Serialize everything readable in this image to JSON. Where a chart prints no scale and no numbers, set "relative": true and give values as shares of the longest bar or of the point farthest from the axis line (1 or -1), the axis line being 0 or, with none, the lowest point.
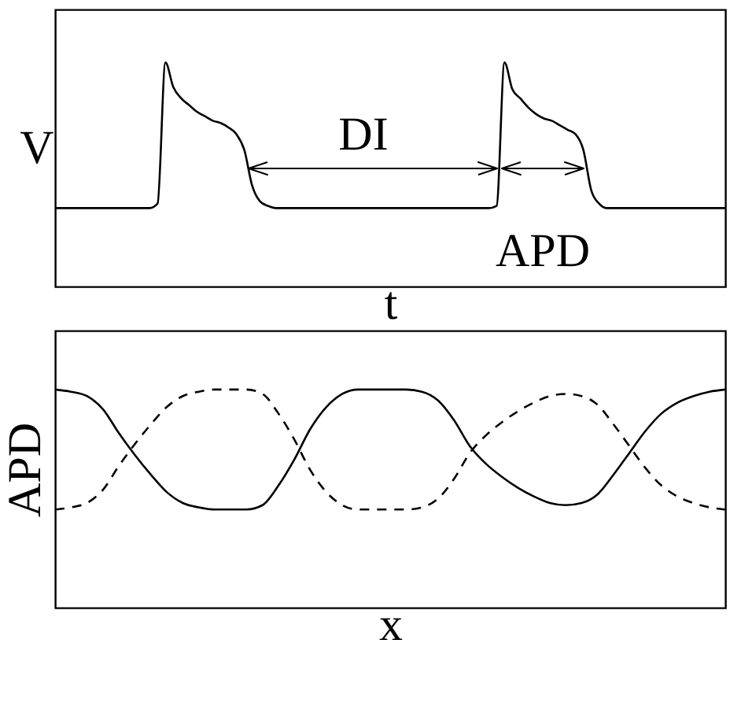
{
  "chart_data": [
    {
      "type": "line",
      "relative": true,
      "xlabel": "t",
      "ylabel": "V",
      "tick_labels": false,
      "annotations": [
        "DI",
        "APD"
      ],
      "categories": [
        null,
        null,
        null,
        null,
        null,
        null,
        null,
        null,
        null,
        null,
        null,
        null,
        null,
        null,
        null,
        null,
        null,
        null,
        null,
        null,
        null,
        null,
        null,
        null,
        null,
        null,
        null,
        null,
        null,
        null,
        null,
        null,
        null,
        null,
        null,
        null,
        null,
        null,
        null,
        null,
        null,
        null,
        null,
        null,
        null,
        null,
        null,
        null,
        null,
        null,
        null,
        null,
        null,
        null,
        null,
        null,
        null,
        null,
        null,
        null,
        null,
        null,
        null,
        null,
        null,
        null,
        null,
        null,
        null,
        null,
        null,
        null,
        null,
        null,
        null,
        null,
        null,
        null,
        null,
        null,
        null,
        null,
        null,
        null,
        null,
        null
      ],
      "series": [
        {
          "color": "#000000",
          "line_style": "solid",
          "values": [
            0.35,
            0.35,
            0.35,
            0.35,
            0.35,
            0.35,
            0.35,
            0.35,
            0.35,
            0.35,
            0.35,
            0.35,
            0.35,
            0.37,
            1.0,
            0.89,
            0.84,
            0.81,
            0.78,
            0.76,
            0.74,
            0.73,
            0.71,
            0.68,
            0.61,
            0.45,
            0.38,
            0.36,
            0.35,
            0.35,
            0.35,
            0.35,
            0.35,
            0.35,
            0.35,
            0.35,
            0.35,
            0.35,
            0.35,
            0.35,
            0.35,
            0.35,
            0.35,
            0.35,
            0.35,
            0.35,
            0.35,
            0.35,
            0.35,
            0.35,
            0.35,
            0.35,
            0.35,
            0.35,
            0.35,
            0.35,
            0.36,
            1.0,
            0.88,
            0.84,
            0.8,
            0.77,
            0.75,
            0.74,
            0.72,
            0.7,
            0.68,
            0.61,
            0.43,
            0.37,
            0.35,
            0.35,
            0.35,
            0.35,
            0.35,
            0.35,
            0.35,
            0.35,
            0.35,
            0.35,
            0.35,
            0.35,
            0.35,
            0.35,
            0.35,
            0.35
          ]
        }
      ]
    },
    {
      "type": "line",
      "relative": true,
      "xlabel": "x",
      "ylabel": "APD",
      "tick_labels": false,
      "categories": [
        null,
        null,
        null,
        null,
        null,
        null,
        null,
        null,
        null,
        null,
        null,
        null,
        null,
        null,
        null,
        null,
        null,
        null,
        null,
        null,
        null,
        null,
        null,
        null,
        null,
        null,
        null,
        null,
        null,
        null,
        null,
        null,
        null,
        null,
        null,
        null,
        null,
        null,
        null,
        null,
        null,
        null,
        null
      ],
      "series": [
        {
          "color": "#000000",
          "line_style": "solid",
          "values": [
            1.0,
            0.99,
            0.97,
            0.91,
            0.8,
            0.7,
            0.61,
            0.53,
            0.48,
            0.46,
            0.45,
            0.45,
            0.45,
            0.47,
            0.56,
            0.68,
            0.82,
            0.92,
            0.98,
            1.0,
            1.0,
            1.0,
            1.0,
            0.99,
            0.95,
            0.86,
            0.74,
            0.66,
            0.6,
            0.55,
            0.51,
            0.48,
            0.47,
            0.48,
            0.52,
            0.61,
            0.71,
            0.81,
            0.89,
            0.94,
            0.97,
            0.99,
            1.0
          ]
        },
        {
          "color": "#000000",
          "line_style": "dashed",
          "values": [
            0.45,
            0.46,
            0.48,
            0.54,
            0.65,
            0.75,
            0.84,
            0.92,
            0.97,
            0.99,
            1.0,
            1.0,
            1.0,
            0.98,
            0.89,
            0.77,
            0.63,
            0.53,
            0.47,
            0.45,
            0.45,
            0.45,
            0.45,
            0.46,
            0.5,
            0.59,
            0.71,
            0.79,
            0.85,
            0.9,
            0.94,
            0.97,
            0.98,
            0.97,
            0.93,
            0.84,
            0.74,
            0.64,
            0.56,
            0.51,
            0.48,
            0.46,
            0.45
          ]
        }
      ]
    }
  ]
}
